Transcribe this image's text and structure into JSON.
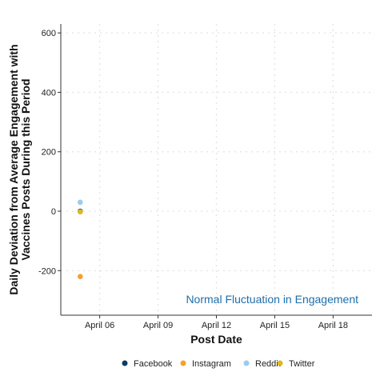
{
  "chart_data": {
    "type": "scatter",
    "title": "",
    "xlabel": "Post Date",
    "ylabel": "Daily Deviation from Average Engagement with Vaccines Posts During this Period",
    "ylabel_lines": [
      "Daily Deviation from Average Engagement with",
      "Vaccines Posts During this Period"
    ],
    "x_ticks": [
      "April 06",
      "April 09",
      "April 12",
      "April 15",
      "April 18"
    ],
    "y_ticks": [
      600,
      400,
      200,
      0,
      -200
    ],
    "y_tick_labels": [
      "600",
      "400",
      "200",
      "0",
      "-200"
    ],
    "ylim": [
      -350,
      630
    ],
    "xlim": [
      "2020-04-04",
      "2020-04-20"
    ],
    "grid": true,
    "legend_position": "bottom",
    "annotation": {
      "text": "Normal Fluctuation in Engagement",
      "color": "#1f6ea8"
    },
    "series": [
      {
        "name": "Facebook",
        "color": "#0d3b66",
        "points": [
          {
            "x": "2020-04-05",
            "y": 0
          }
        ]
      },
      {
        "name": "Instagram",
        "color": "#f5a02a",
        "points": [
          {
            "x": "2020-04-05",
            "y": -220
          }
        ]
      },
      {
        "name": "Reddit",
        "color": "#9ccbf0",
        "points": [
          {
            "x": "2020-04-05",
            "y": 30
          }
        ]
      },
      {
        "name": "Twitter",
        "color": "#e0b81c",
        "points": [
          {
            "x": "2020-04-05",
            "y": -2
          }
        ]
      }
    ]
  }
}
